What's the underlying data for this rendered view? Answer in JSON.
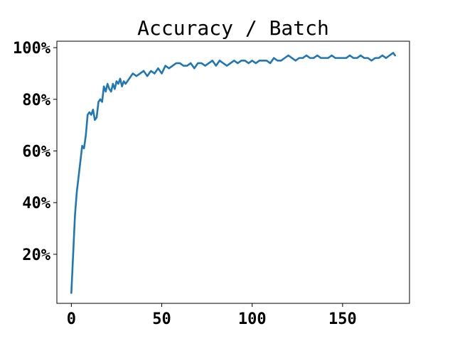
{
  "chart_data": {
    "type": "line",
    "title": "Accuracy / Batch",
    "xlabel": "",
    "ylabel": "",
    "xlim": [
      -8,
      187
    ],
    "ylim": [
      0.01,
      1.025
    ],
    "x_ticks": [
      {
        "value": 0,
        "label": "0"
      },
      {
        "value": 50,
        "label": "50"
      },
      {
        "value": 100,
        "label": "100"
      },
      {
        "value": 150,
        "label": "150"
      }
    ],
    "y_ticks": [
      {
        "value": 0.2,
        "label": "20%"
      },
      {
        "value": 0.4,
        "label": "40%"
      },
      {
        "value": 0.6,
        "label": "60%"
      },
      {
        "value": 0.8,
        "label": "80%"
      },
      {
        "value": 1.0,
        "label": "100%"
      }
    ],
    "grid": false,
    "legend": "none",
    "series": [
      {
        "color": "#1f77b4",
        "x": [
          0,
          1,
          2,
          3,
          4,
          5,
          6,
          7,
          8,
          9,
          10,
          11,
          12,
          13,
          14,
          15,
          16,
          17,
          18,
          19,
          20,
          21,
          22,
          23,
          24,
          25,
          26,
          27,
          28,
          29,
          30,
          32,
          34,
          36,
          38,
          40,
          42,
          44,
          46,
          48,
          50,
          52,
          54,
          56,
          58,
          60,
          62,
          64,
          66,
          68,
          70,
          72,
          74,
          76,
          78,
          80,
          82,
          84,
          86,
          88,
          90,
          92,
          94,
          96,
          98,
          100,
          102,
          104,
          106,
          108,
          110,
          112,
          114,
          116,
          118,
          120,
          122,
          124,
          126,
          128,
          130,
          132,
          134,
          136,
          138,
          140,
          142,
          144,
          146,
          148,
          150,
          152,
          154,
          156,
          158,
          160,
          162,
          164,
          166,
          168,
          170,
          172,
          174,
          176,
          178,
          179
        ],
        "y": [
          0.05,
          0.2,
          0.35,
          0.44,
          0.5,
          0.56,
          0.62,
          0.61,
          0.66,
          0.74,
          0.75,
          0.74,
          0.76,
          0.72,
          0.73,
          0.79,
          0.8,
          0.79,
          0.85,
          0.83,
          0.86,
          0.84,
          0.83,
          0.86,
          0.84,
          0.87,
          0.86,
          0.88,
          0.85,
          0.87,
          0.86,
          0.88,
          0.9,
          0.89,
          0.9,
          0.91,
          0.89,
          0.91,
          0.9,
          0.92,
          0.9,
          0.93,
          0.92,
          0.93,
          0.94,
          0.94,
          0.93,
          0.93,
          0.94,
          0.92,
          0.94,
          0.94,
          0.93,
          0.94,
          0.95,
          0.93,
          0.95,
          0.94,
          0.93,
          0.94,
          0.95,
          0.94,
          0.95,
          0.95,
          0.94,
          0.95,
          0.94,
          0.95,
          0.95,
          0.95,
          0.94,
          0.96,
          0.95,
          0.95,
          0.96,
          0.97,
          0.96,
          0.95,
          0.96,
          0.96,
          0.97,
          0.96,
          0.96,
          0.97,
          0.96,
          0.96,
          0.96,
          0.97,
          0.96,
          0.96,
          0.96,
          0.96,
          0.97,
          0.96,
          0.96,
          0.97,
          0.96,
          0.96,
          0.95,
          0.96,
          0.96,
          0.97,
          0.96,
          0.97,
          0.98,
          0.97
        ]
      }
    ]
  }
}
